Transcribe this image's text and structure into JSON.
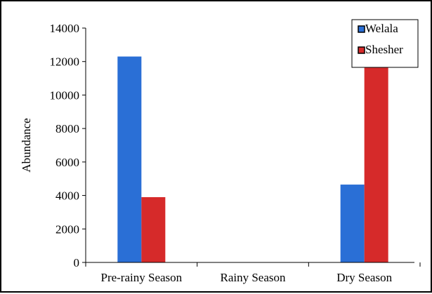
{
  "chart_data": {
    "type": "bar",
    "categories": [
      "Pre-rainy Season",
      "Rainy Season",
      "Dry Season"
    ],
    "series": [
      {
        "name": "Welala",
        "values": [
          12300,
          0,
          4650
        ],
        "color": "#2a6fd6"
      },
      {
        "name": "Shesher",
        "values": [
          3900,
          0,
          11700
        ],
        "color": "#d62a2a"
      }
    ],
    "title": "",
    "xlabel": "",
    "ylabel": "Abundance",
    "ylim": [
      0,
      14000
    ],
    "yticks": [
      "0",
      "2000",
      "4000",
      "6000",
      "8000",
      "10000",
      "12000",
      "14000"
    ],
    "grid": false,
    "legend_position": "top-right"
  }
}
